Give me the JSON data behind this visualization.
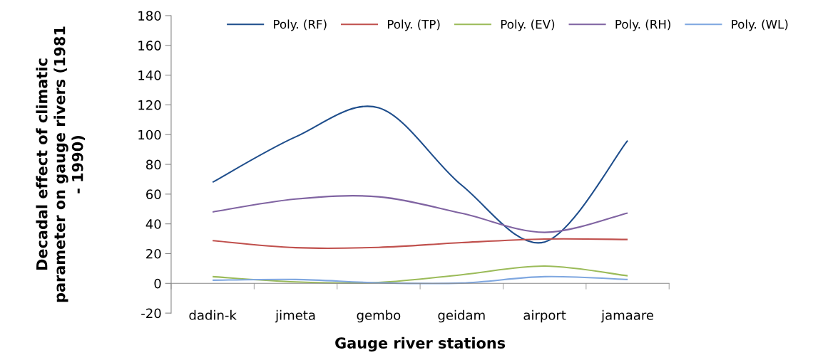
{
  "chart_data": {
    "type": "line",
    "xlabel": "Gauge river stations",
    "ylabel": "Decadal effect of climatic\nparameter on gauge rivers (1981\n- 1990)",
    "categories": [
      "dadin-k",
      "jimeta",
      "gembo",
      "geidam",
      "airport",
      "jamaare"
    ],
    "series": [
      {
        "name": "Poly. (RF)",
        "color": "#1f4e8c",
        "values": [
          68,
          98.5,
          118,
          66,
          27.8,
          96
        ]
      },
      {
        "name": "Poly. (TP)",
        "color": "#c0504d",
        "values": [
          28.7,
          24,
          24.2,
          27.4,
          29.8,
          29.5
        ]
      },
      {
        "name": "Poly. (EV)",
        "color": "#9bbb59",
        "values": [
          4.5,
          1,
          0.6,
          5.8,
          11.6,
          5.1
        ]
      },
      {
        "name": "Poly. (RH)",
        "color": "#8064a2",
        "values": [
          48,
          56.7,
          58.2,
          47.1,
          34.3,
          47.3
        ]
      },
      {
        "name": "Poly. (WL)",
        "color": "#7fa7e0",
        "values": [
          2.1,
          2.6,
          0.4,
          0.2,
          4.5,
          2.6
        ]
      }
    ],
    "ylim": [
      -20,
      180
    ],
    "yticks": [
      -20,
      0,
      20,
      40,
      60,
      80,
      100,
      120,
      140,
      160,
      180
    ],
    "grid": false,
    "legend": "top",
    "marker": "none",
    "line_style": "solid"
  }
}
